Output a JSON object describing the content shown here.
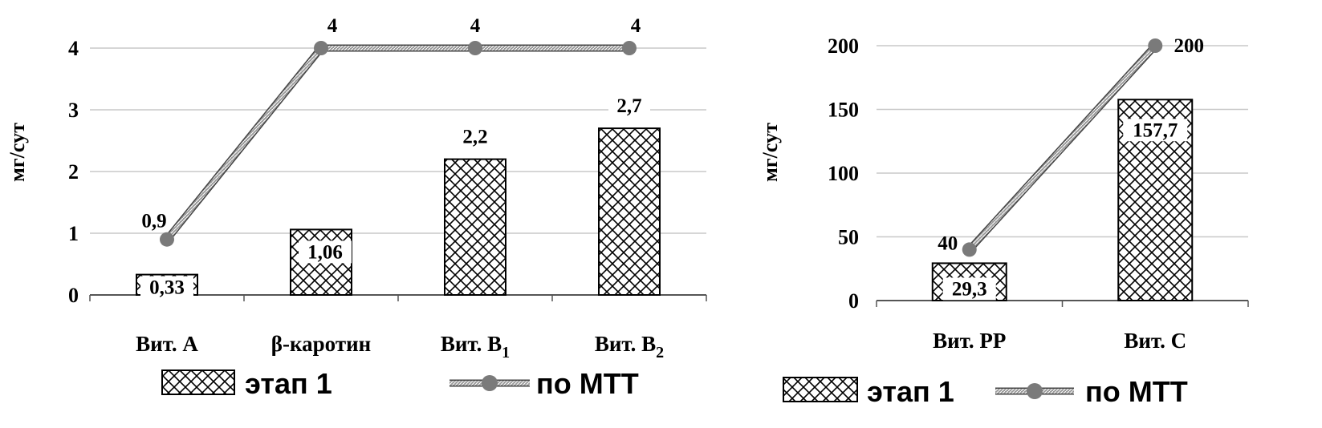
{
  "chart_data": [
    {
      "type": "bar",
      "ylabel": "мг/сут",
      "ylim": [
        0,
        4
      ],
      "yticks": [
        "0",
        "1",
        "2",
        "3",
        "4"
      ],
      "grid": true,
      "categories": [
        {
          "main": "Вит. А",
          "sub": ""
        },
        {
          "main": "β-каротин",
          "sub": ""
        },
        {
          "main": "Вит. В",
          "sub": "1"
        },
        {
          "main": "Вит. В",
          "sub": "2"
        }
      ],
      "series": [
        {
          "name": "этап 1",
          "type": "bar",
          "values": [
            0.33,
            1.06,
            2.2,
            2.7
          ],
          "labels": [
            "0,33",
            "1,06",
            "2,2",
            "2,7"
          ]
        },
        {
          "name": "по МТТ",
          "type": "line",
          "values": [
            0.9,
            4,
            4,
            4
          ],
          "labels": [
            "0,9",
            "4",
            "4",
            "4"
          ]
        }
      ],
      "legend": "bottom"
    },
    {
      "type": "bar",
      "ylabel": "мг/сут",
      "ylim": [
        0,
        200
      ],
      "yticks": [
        "0",
        "50",
        "100",
        "150",
        "200"
      ],
      "grid": true,
      "categories": [
        {
          "main": "Вит. РР",
          "sub": ""
        },
        {
          "main": "Вит. С",
          "sub": ""
        }
      ],
      "series": [
        {
          "name": "этап 1",
          "type": "bar",
          "values": [
            29.3,
            157.7
          ],
          "labels": [
            "29,3",
            "157,7"
          ]
        },
        {
          "name": "по МТТ",
          "type": "line",
          "values": [
            40,
            200
          ],
          "labels": [
            "40",
            "200"
          ]
        }
      ],
      "legend": "bottom"
    }
  ],
  "colors": {
    "grid": "#c8c8c8",
    "axis": "#000000",
    "marker": "#7a7a7a",
    "hatch": "#000000"
  }
}
